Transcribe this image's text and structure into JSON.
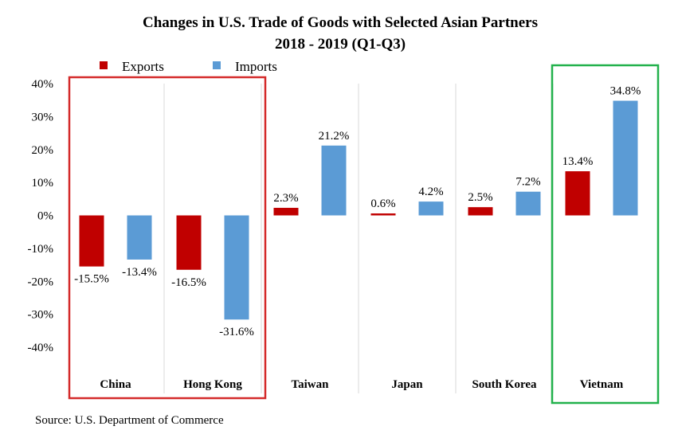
{
  "chart_data": {
    "type": "bar",
    "title": "Changes in U.S. Trade of Goods with Selected Asian Partners",
    "subtitle": "2018 - 2019 (Q1-Q3)",
    "categories": [
      "China",
      "Hong Kong",
      "Taiwan",
      "Japan",
      "South Korea",
      "Vietnam"
    ],
    "series": [
      {
        "name": "Exports",
        "color": "#c00000",
        "values": [
          -15.5,
          -16.5,
          2.3,
          0.6,
          2.5,
          13.4
        ],
        "labels": [
          "-15.5%",
          "-16.5%",
          "2.3%",
          "0.6%",
          "2.5%",
          "13.4%"
        ]
      },
      {
        "name": "Imports",
        "color": "#5b9bd5",
        "values": [
          -13.4,
          -31.6,
          21.2,
          4.2,
          7.2,
          34.8
        ],
        "labels": [
          "-13.4%",
          "-31.6%",
          "21.2%",
          "4.2%",
          "7.2%",
          "34.8%"
        ]
      }
    ],
    "yticks": [
      "40%",
      "30%",
      "20%",
      "10%",
      "0%",
      "-10%",
      "-20%",
      "-30%",
      "-40%"
    ],
    "ytick_values": [
      40,
      30,
      20,
      10,
      0,
      -10,
      -20,
      -30,
      -40
    ],
    "ylim": [
      -40,
      40
    ],
    "grid": "vertical lines between categories",
    "legend": "top-left",
    "highlights": [
      {
        "categories": [
          "China",
          "Hong Kong"
        ],
        "color": "#d42a2a"
      },
      {
        "categories": [
          "Vietnam"
        ],
        "color": "#22b14c"
      }
    ],
    "source": "Source: U.S. Department of Commerce"
  }
}
